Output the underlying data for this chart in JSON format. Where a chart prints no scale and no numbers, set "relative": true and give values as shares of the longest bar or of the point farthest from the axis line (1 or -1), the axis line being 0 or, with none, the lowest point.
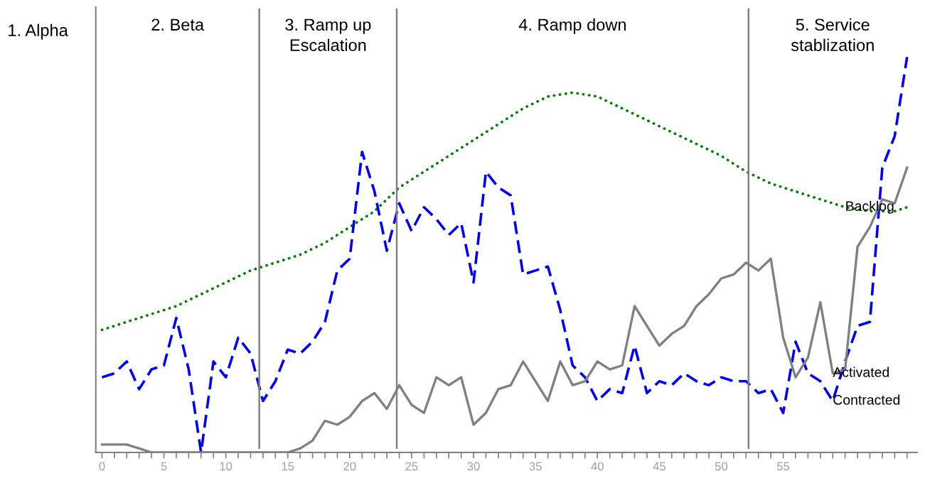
{
  "chart_data": {
    "type": "line",
    "relative": true,
    "x": [
      0,
      1,
      2,
      3,
      4,
      5,
      6,
      7,
      8,
      9,
      10,
      11,
      12,
      13,
      14,
      15,
      16,
      17,
      18,
      19,
      20,
      21,
      22,
      23,
      24,
      25,
      26,
      27,
      28,
      29,
      30,
      31,
      32,
      33,
      34,
      35,
      36,
      37,
      38,
      39,
      40,
      41,
      42,
      43,
      44,
      45,
      46,
      47,
      48,
      49,
      50,
      51,
      52,
      53,
      54,
      55,
      56,
      57,
      58,
      59,
      60,
      61,
      62,
      63,
      64,
      65
    ],
    "xlim": [
      -0.5,
      65.8
    ],
    "xticks": [
      0,
      {
        "value": 1,
        "label": null
      },
      {
        "value": 2,
        "label": null
      },
      {
        "value": 3,
        "label": null
      },
      {
        "value": 4,
        "label": null
      },
      5,
      {
        "value": 6,
        "label": null
      },
      {
        "value": 7,
        "label": null
      },
      {
        "value": 8,
        "label": null
      },
      {
        "value": 9,
        "label": null
      },
      10,
      {
        "value": 11,
        "label": null
      },
      {
        "value": 12,
        "label": null
      },
      {
        "value": 13,
        "label": null
      },
      {
        "value": 14,
        "label": null
      },
      15,
      {
        "value": 16,
        "label": null
      },
      {
        "value": 17,
        "label": null
      },
      {
        "value": 18,
        "label": null
      },
      {
        "value": 19,
        "label": null
      },
      20,
      {
        "value": 21,
        "label": null
      },
      {
        "value": 22,
        "label": null
      },
      {
        "value": 23,
        "label": null
      },
      {
        "value": 24,
        "label": null
      },
      25,
      {
        "value": 26,
        "label": null
      },
      {
        "value": 27,
        "label": null
      },
      {
        "value": 28,
        "label": null
      },
      {
        "value": 29,
        "label": null
      },
      30,
      {
        "value": 31,
        "label": null
      },
      {
        "value": 32,
        "label": null
      },
      {
        "value": 33,
        "label": null
      },
      {
        "value": 34,
        "label": null
      },
      35,
      {
        "value": 36,
        "label": null
      },
      {
        "value": 37,
        "label": null
      },
      {
        "value": 38,
        "label": null
      },
      {
        "value": 39,
        "label": null
      },
      40,
      {
        "value": 41,
        "label": null
      },
      {
        "value": 42,
        "label": null
      },
      {
        "value": 43,
        "label": null
      },
      {
        "value": 44,
        "label": null
      },
      45,
      {
        "value": 46,
        "label": null
      },
      {
        "value": 47,
        "label": null
      },
      {
        "value": 48,
        "label": null
      },
      {
        "value": 49,
        "label": null
      },
      50,
      {
        "value": 51,
        "label": null
      },
      {
        "value": 52,
        "label": null
      },
      {
        "value": 53,
        "label": null
      },
      {
        "value": 54,
        "label": null
      },
      55,
      {
        "value": 56,
        "label": null
      },
      {
        "value": 57,
        "label": null
      },
      {
        "value": 58,
        "label": null
      },
      {
        "value": 59,
        "label": null
      },
      {
        "value": 60,
        "label": null
      },
      {
        "value": 61,
        "label": null
      },
      {
        "value": 62,
        "label": null
      },
      {
        "value": 63,
        "label": null
      },
      {
        "value": 64,
        "label": null
      },
      {
        "value": 65,
        "label": null
      }
    ],
    "legend": false,
    "marker": "none",
    "series": [
      {
        "name": "Backlog",
        "color": "#008000",
        "line_style": "dotted",
        "x": [
          0,
          2,
          4,
          6,
          8,
          10,
          12,
          14,
          16,
          18,
          20,
          22,
          24,
          26,
          28,
          30,
          32,
          34,
          36,
          38,
          40,
          42,
          44,
          46,
          48,
          50,
          52,
          54,
          56,
          58,
          60,
          62,
          64,
          65
        ],
        "values": [
          0.31,
          0.33,
          0.35,
          0.37,
          0.4,
          0.43,
          0.46,
          0.48,
          0.5,
          0.53,
          0.57,
          0.61,
          0.67,
          0.71,
          0.75,
          0.79,
          0.83,
          0.87,
          0.9,
          0.91,
          0.9,
          0.87,
          0.84,
          0.81,
          0.78,
          0.75,
          0.71,
          0.68,
          0.66,
          0.64,
          0.62,
          0.61,
          0.61,
          0.62
        ]
      },
      {
        "name": "Contracted",
        "color": "#0000ff",
        "line_style": "dashed",
        "values": [
          0.19,
          0.2,
          0.23,
          0.16,
          0.21,
          0.22,
          0.34,
          0.21,
          0.0,
          0.23,
          0.19,
          0.29,
          0.25,
          0.13,
          0.18,
          0.26,
          0.25,
          0.28,
          0.33,
          0.46,
          0.49,
          0.76,
          0.66,
          0.51,
          0.63,
          0.56,
          0.62,
          0.59,
          0.55,
          0.58,
          0.43,
          0.71,
          0.67,
          0.65,
          0.45,
          0.46,
          0.47,
          0.36,
          0.22,
          0.19,
          0.13,
          0.16,
          0.15,
          0.27,
          0.15,
          0.18,
          0.17,
          0.2,
          0.18,
          0.17,
          0.19,
          0.18,
          0.18,
          0.15,
          0.16,
          0.1,
          0.28,
          0.2,
          0.18,
          0.13,
          0.23,
          0.32,
          0.33,
          0.72,
          0.8,
          1.0
        ]
      },
      {
        "name": "Activated",
        "color": "#808080",
        "line_style": "solid",
        "values": [
          0.02,
          0.02,
          0.02,
          0.01,
          0.0,
          0.0,
          0.0,
          0.0,
          0.0,
          0.0,
          0.0,
          0.0,
          0.0,
          0.0,
          0.0,
          0.0,
          0.01,
          0.03,
          0.08,
          0.07,
          0.09,
          0.13,
          0.15,
          0.11,
          0.17,
          0.12,
          0.1,
          0.19,
          0.17,
          0.19,
          0.07,
          0.1,
          0.16,
          0.17,
          0.23,
          0.18,
          0.13,
          0.23,
          0.17,
          0.18,
          0.23,
          0.21,
          0.22,
          0.37,
          0.32,
          0.27,
          0.3,
          0.32,
          0.37,
          0.4,
          0.44,
          0.45,
          0.48,
          0.46,
          0.49,
          0.29,
          0.19,
          0.24,
          0.38,
          0.2,
          0.21,
          0.52,
          0.57,
          0.64,
          0.63,
          0.72
        ]
      }
    ],
    "ref_lines": [
      {
        "axis": "x",
        "value": 12.7,
        "color": "#808080"
      },
      {
        "axis": "x",
        "value": 23.8,
        "color": "#808080"
      },
      {
        "axis": "x",
        "value": 52.2,
        "color": "#808080"
      }
    ],
    "annotations": [
      "1. Alpha",
      "2. Beta",
      "3. Ramp up\nEscalation",
      "4. Ramp down",
      "5. Service\nstablization"
    ]
  }
}
